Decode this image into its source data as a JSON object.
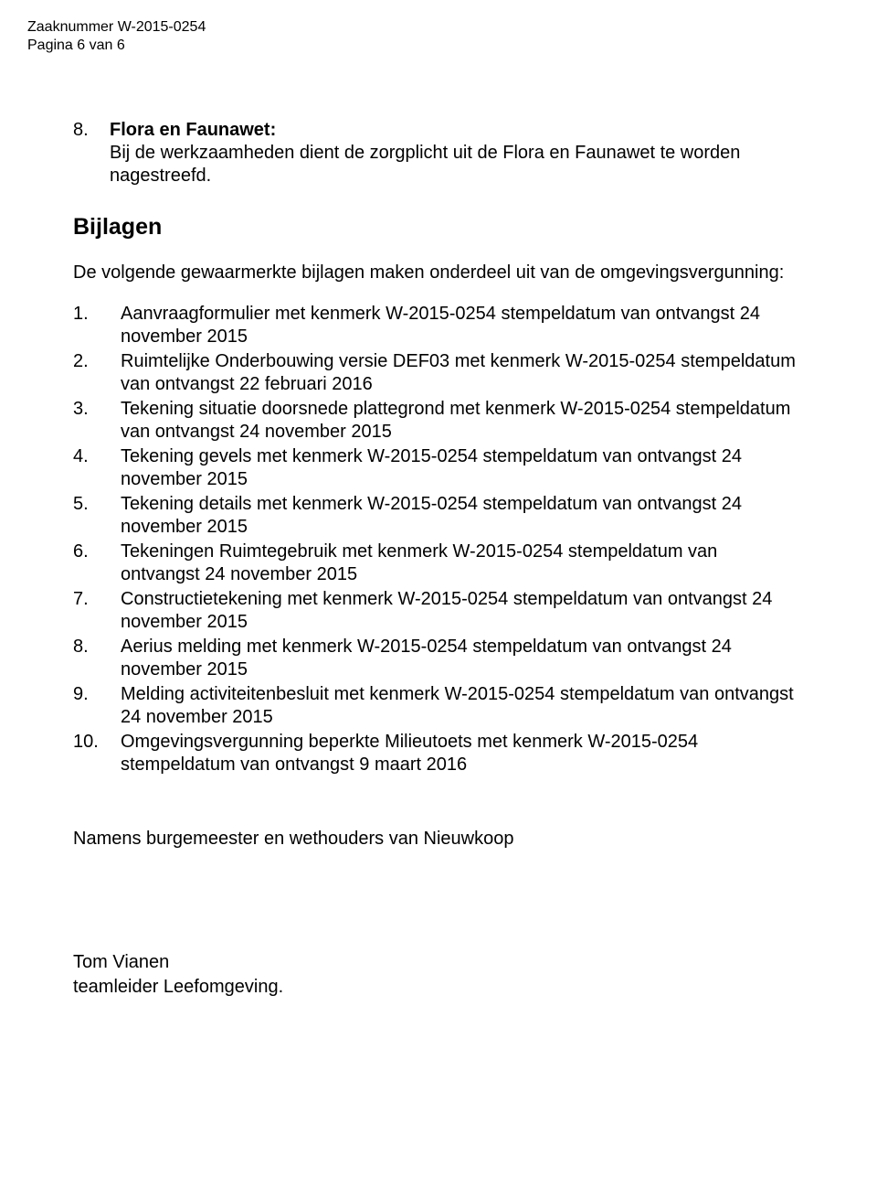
{
  "header": {
    "case_number_line": "Zaaknummer W-2015-0254",
    "page_line": "Pagina 6 van 6"
  },
  "section8": {
    "number": "8.",
    "title": "Flora en Faunawet:",
    "body": "Bij de werkzaamheden dient de zorgplicht uit de Flora en Faunawet te worden nagestreefd."
  },
  "bijlagen": {
    "title": "Bijlagen",
    "intro": "De volgende gewaarmerkte bijlagen maken onderdeel uit van de omgevingsvergunning:",
    "items": [
      {
        "num": "1.",
        "text": "Aanvraagformulier met kenmerk W-2015-0254 stempeldatum van ontvangst 24 november 2015"
      },
      {
        "num": "2.",
        "text": "Ruimtelijke Onderbouwing versie DEF03 met kenmerk W-2015-0254 stempeldatum van ontvangst 22 februari 2016"
      },
      {
        "num": "3.",
        "text": "Tekening situatie doorsnede plattegrond met kenmerk W-2015-0254 stempeldatum van ontvangst 24 november 2015"
      },
      {
        "num": "4.",
        "text": "Tekening gevels met kenmerk W-2015-0254 stempeldatum van ontvangst 24 november 2015"
      },
      {
        "num": "5.",
        "text": "Tekening details met kenmerk W-2015-0254 stempeldatum van ontvangst 24 november 2015"
      },
      {
        "num": "6.",
        "text": "Tekeningen Ruimtegebruik met kenmerk W-2015-0254 stempeldatum van ontvangst 24 november 2015"
      },
      {
        "num": "7.",
        "text": "Constructietekening met kenmerk W-2015-0254 stempeldatum van ontvangst 24 november 2015"
      },
      {
        "num": "8.",
        "text": "Aerius melding met kenmerk W-2015-0254 stempeldatum van ontvangst 24 november 2015"
      },
      {
        "num": "9.",
        "text": "Melding activiteitenbesluit met kenmerk W-2015-0254 stempeldatum van ontvangst 24 november 2015"
      },
      {
        "num": "10.",
        "text": "Omgevingsvergunning beperkte Milieutoets met kenmerk W-2015-0254 stempeldatum van ontvangst 9 maart 2016"
      }
    ]
  },
  "closing_line": "Namens burgemeester en wethouders van Nieuwkoop",
  "signature": {
    "name": "Tom Vianen",
    "title": "teamleider Leefomgeving."
  }
}
